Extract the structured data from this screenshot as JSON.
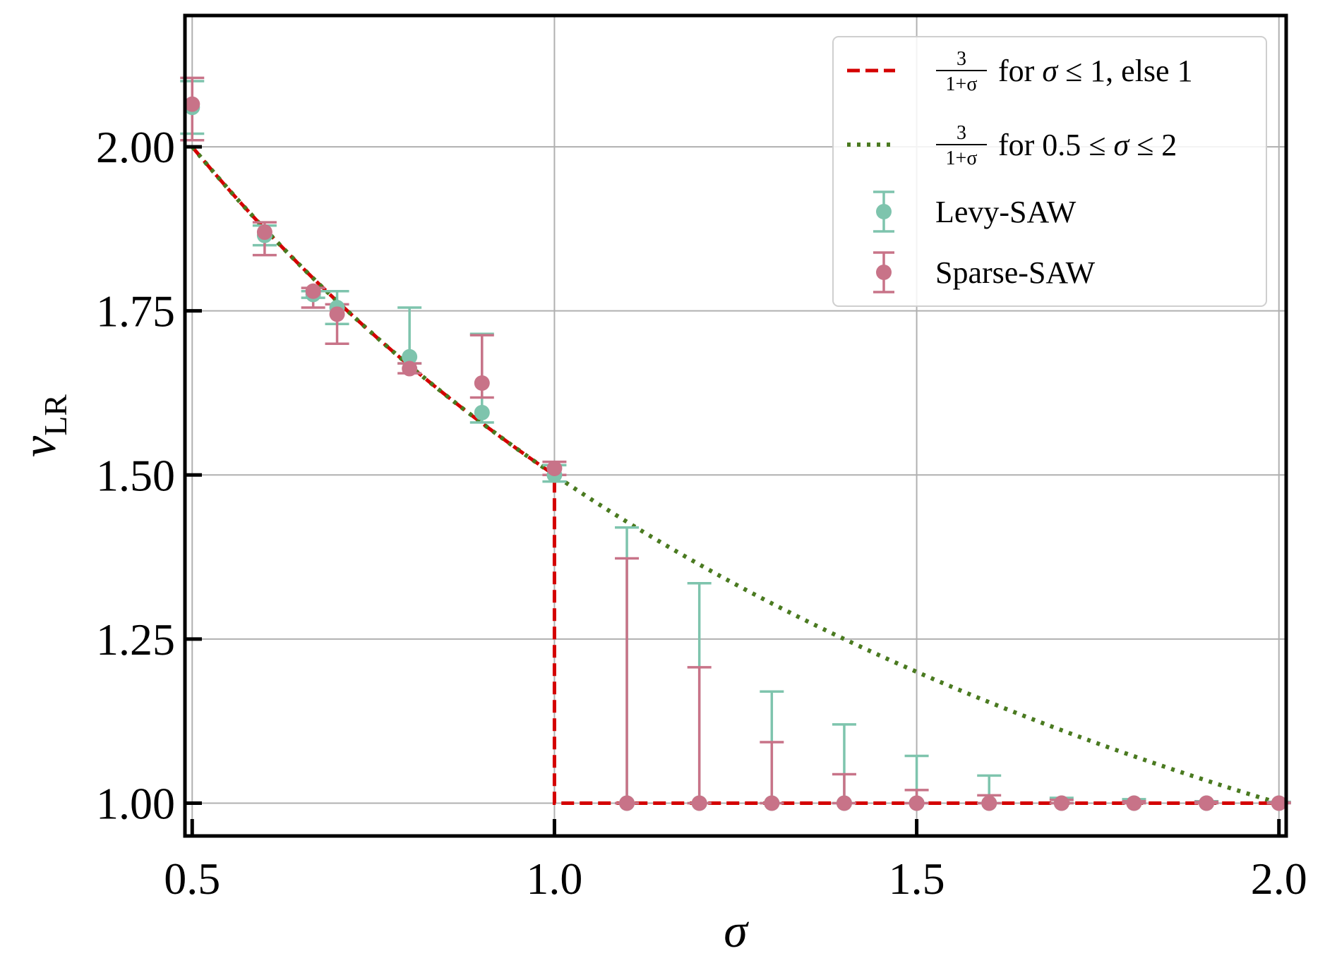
{
  "chart_data": {
    "type": "scatter",
    "xlabel": "σ",
    "ylabel_main": "ν",
    "ylabel_sub": "LR",
    "xlim": [
      0.49,
      2.01
    ],
    "ylim": [
      0.95,
      2.2
    ],
    "xticks": [
      0.5,
      1.0,
      1.5,
      2.0
    ],
    "xtick_labels": [
      "0.5",
      "1.0",
      "1.5",
      "2.0"
    ],
    "yticks": [
      1.0,
      1.25,
      1.5,
      1.75,
      2.0
    ],
    "ytick_labels": [
      "1.00",
      "1.25",
      "1.50",
      "1.75",
      "2.00"
    ],
    "grid": true,
    "legend_position": "top-right",
    "curves": [
      {
        "name": "3/(1+σ) for σ ≤ 1, else 1",
        "style": "dashed",
        "color": "#d40000",
        "legend_parts": {
          "num": "3",
          "den": "1+σ",
          "rest_a": "for ",
          "sym": "σ",
          "rest_b": " ≤ 1, else 1"
        }
      },
      {
        "name": "3/(1+σ) for 0.5 ≤ σ ≤ 2",
        "style": "dotted",
        "color": "#4a7a20",
        "legend_parts": {
          "num": "3",
          "den": "1+σ",
          "rest_a": "for 0.5 ≤ ",
          "sym": "σ",
          "rest_b": " ≤ 2"
        }
      }
    ],
    "series": [
      {
        "name": "Levy-SAW",
        "color": "#7ec4ad",
        "points": [
          {
            "x": 0.5,
            "y": 2.06,
            "lo": 2.02,
            "hi": 2.1
          },
          {
            "x": 0.6,
            "y": 1.865,
            "lo": 1.85,
            "hi": 1.88
          },
          {
            "x": 0.667,
            "y": 1.775,
            "lo": 1.77,
            "hi": 1.78
          },
          {
            "x": 0.7,
            "y": 1.755,
            "lo": 1.73,
            "hi": 1.78
          },
          {
            "x": 0.8,
            "y": 1.68,
            "lo": 1.67,
            "hi": 1.755
          },
          {
            "x": 0.9,
            "y": 1.595,
            "lo": 1.58,
            "hi": 1.715
          },
          {
            "x": 1.0,
            "y": 1.5,
            "lo": 1.49,
            "hi": 1.515
          },
          {
            "x": 1.1,
            "y": 1.0,
            "lo": 1.0,
            "hi": 1.42
          },
          {
            "x": 1.2,
            "y": 1.0,
            "lo": 1.0,
            "hi": 1.335
          },
          {
            "x": 1.3,
            "y": 1.0,
            "lo": 1.0,
            "hi": 1.17
          },
          {
            "x": 1.4,
            "y": 1.0,
            "lo": 1.0,
            "hi": 1.12
          },
          {
            "x": 1.5,
            "y": 1.0,
            "lo": 1.0,
            "hi": 1.072
          },
          {
            "x": 1.6,
            "y": 1.0,
            "lo": 1.0,
            "hi": 1.042
          },
          {
            "x": 1.7,
            "y": 1.0,
            "lo": 1.0,
            "hi": 1.008
          },
          {
            "x": 1.8,
            "y": 1.0,
            "lo": 1.0,
            "hi": 1.006
          },
          {
            "x": 1.9,
            "y": 1.0,
            "lo": 1.0,
            "hi": 1.003
          },
          {
            "x": 2.0,
            "y": 1.0,
            "lo": 1.0,
            "hi": 1.002
          }
        ]
      },
      {
        "name": "Sparse-SAW",
        "color": "#c87388",
        "points": [
          {
            "x": 0.5,
            "y": 2.065,
            "lo": 2.01,
            "hi": 2.105
          },
          {
            "x": 0.6,
            "y": 1.87,
            "lo": 1.835,
            "hi": 1.885
          },
          {
            "x": 0.667,
            "y": 1.78,
            "lo": 1.755,
            "hi": 1.785
          },
          {
            "x": 0.7,
            "y": 1.745,
            "lo": 1.7,
            "hi": 1.76
          },
          {
            "x": 0.8,
            "y": 1.662,
            "lo": 1.655,
            "hi": 1.67
          },
          {
            "x": 0.9,
            "y": 1.64,
            "lo": 1.618,
            "hi": 1.713
          },
          {
            "x": 1.0,
            "y": 1.51,
            "lo": 1.5,
            "hi": 1.52
          },
          {
            "x": 1.1,
            "y": 1.0,
            "lo": 1.0,
            "hi": 1.373
          },
          {
            "x": 1.2,
            "y": 1.0,
            "lo": 1.0,
            "hi": 1.207
          },
          {
            "x": 1.3,
            "y": 1.0,
            "lo": 1.0,
            "hi": 1.093
          },
          {
            "x": 1.4,
            "y": 1.0,
            "lo": 1.0,
            "hi": 1.044
          },
          {
            "x": 1.5,
            "y": 1.0,
            "lo": 1.0,
            "hi": 1.02
          },
          {
            "x": 1.6,
            "y": 1.0,
            "lo": 1.0,
            "hi": 1.012
          },
          {
            "x": 1.7,
            "y": 1.0,
            "lo": 1.0,
            "hi": 1.005
          },
          {
            "x": 1.8,
            "y": 1.0,
            "lo": 1.0,
            "hi": 1.003
          },
          {
            "x": 1.9,
            "y": 1.0,
            "lo": 1.0,
            "hi": 1.002
          },
          {
            "x": 2.0,
            "y": 1.0,
            "lo": 1.0,
            "hi": 1.001
          }
        ]
      }
    ]
  }
}
